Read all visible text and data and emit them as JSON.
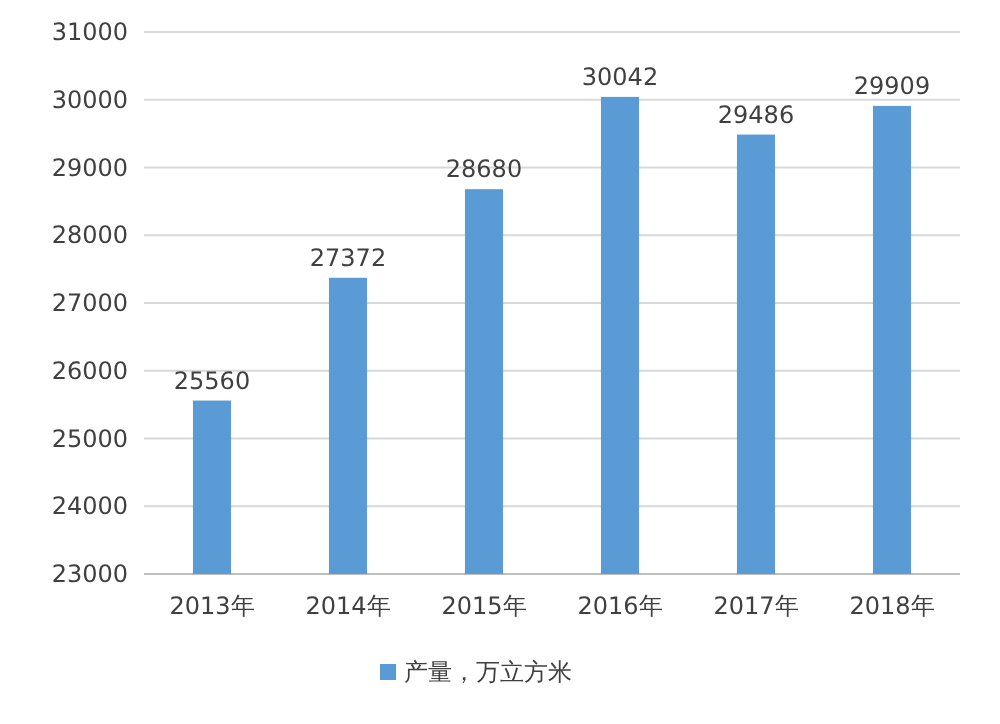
{
  "chart_data": {
    "type": "bar",
    "categories": [
      "2013年",
      "2014年",
      "2015年",
      "2016年",
      "2017年",
      "2018年"
    ],
    "series": [
      {
        "name": "产量，万立方米",
        "color": "#5b9bd5",
        "values": [
          25560,
          27372,
          28680,
          30042,
          29486,
          29909
        ]
      }
    ],
    "ylim": [
      23000,
      31000
    ],
    "yticks": [
      23000,
      24000,
      25000,
      26000,
      27000,
      28000,
      29000,
      30000,
      31000
    ],
    "grid": "y",
    "data_labels": true,
    "legend": "bottom"
  }
}
